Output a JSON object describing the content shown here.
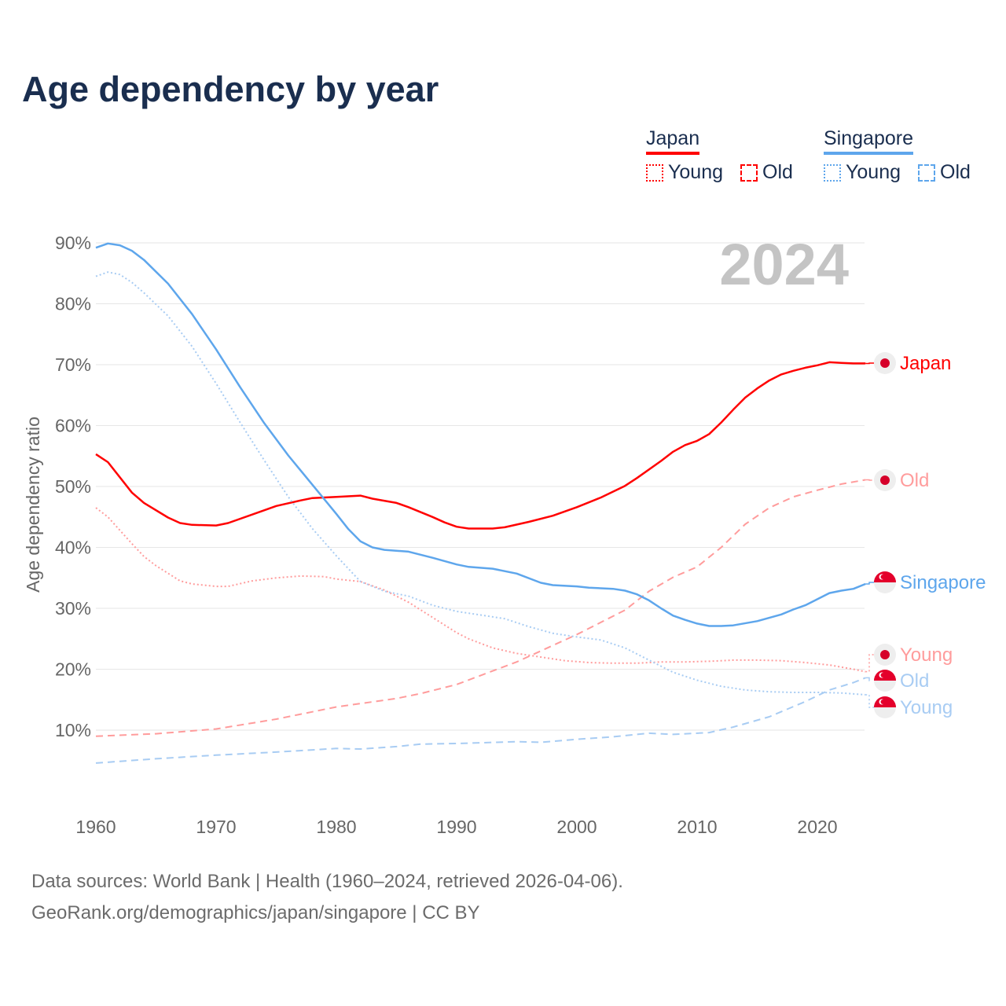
{
  "title": "Age dependency by year",
  "year_watermark": "2024",
  "legend": {
    "groups": [
      {
        "name": "Japan",
        "color": "#ff0000",
        "items": [
          {
            "label": "Young",
            "style": "dotted"
          },
          {
            "label": "Old",
            "style": "dashed"
          }
        ]
      },
      {
        "name": "Singapore",
        "color": "#5ea6ec",
        "items": [
          {
            "label": "Young",
            "style": "dotted"
          },
          {
            "label": "Old",
            "style": "dashed"
          }
        ]
      }
    ]
  },
  "footer": {
    "line1": "Data sources: World Bank | Health (1960–2024, retrieved 2026-04-06).",
    "line2": "GeoRank.org/demographics/japan/singapore | CC BY"
  },
  "chart_data": {
    "type": "line",
    "title": "Age dependency by year",
    "xlabel": "",
    "ylabel": "Age dependency ratio",
    "xlim": [
      1960,
      2024
    ],
    "ylim": [
      0,
      90
    ],
    "x_ticks": [
      "1960",
      "1970",
      "1980",
      "1990",
      "2000",
      "2010",
      "2020"
    ],
    "y_ticks": [
      "10%",
      "20%",
      "30%",
      "40%",
      "50%",
      "60%",
      "70%",
      "80%",
      "90%"
    ],
    "grid": true,
    "series": [
      {
        "name": "Japan",
        "label": "Japan",
        "country": "Japan",
        "color": "#ff0000",
        "dash": "solid",
        "points": [
          [
            1960,
            55.3
          ],
          [
            1961,
            54
          ],
          [
            1963,
            49
          ],
          [
            1964,
            47.3
          ],
          [
            1966,
            44.9
          ],
          [
            1967,
            44
          ],
          [
            1968,
            43.7
          ],
          [
            1970,
            43.6
          ],
          [
            1971,
            44
          ],
          [
            1973,
            45.4
          ],
          [
            1975,
            46.8
          ],
          [
            1977,
            47.7
          ],
          [
            1978,
            48.1
          ],
          [
            1980,
            48.3
          ],
          [
            1982,
            48.5
          ],
          [
            1983,
            48
          ],
          [
            1985,
            47.3
          ],
          [
            1986,
            46.6
          ],
          [
            1988,
            45
          ],
          [
            1989,
            44.1
          ],
          [
            1990,
            43.4
          ],
          [
            1991,
            43.1
          ],
          [
            1993,
            43.1
          ],
          [
            1994,
            43.3
          ],
          [
            1996,
            44.2
          ],
          [
            1998,
            45.2
          ],
          [
            2000,
            46.6
          ],
          [
            2002,
            48.2
          ],
          [
            2004,
            50.1
          ],
          [
            2005,
            51.4
          ],
          [
            2007,
            54.2
          ],
          [
            2008,
            55.7
          ],
          [
            2009,
            56.8
          ],
          [
            2010,
            57.5
          ],
          [
            2011,
            58.6
          ],
          [
            2012,
            60.5
          ],
          [
            2013,
            62.6
          ],
          [
            2014,
            64.6
          ],
          [
            2015,
            66.1
          ],
          [
            2016,
            67.4
          ],
          [
            2017,
            68.4
          ],
          [
            2018,
            69
          ],
          [
            2019,
            69.5
          ],
          [
            2020,
            69.9
          ],
          [
            2021,
            70.4
          ],
          [
            2022,
            70.3
          ],
          [
            2023,
            70.2
          ],
          [
            2024,
            70.2
          ]
        ]
      },
      {
        "name": "Japan Old",
        "label": "Old",
        "country": "Japan",
        "color": "#ff9c9c",
        "dash": "dashed",
        "points": [
          [
            1960,
            9
          ],
          [
            1965,
            9.4
          ],
          [
            1970,
            10.2
          ],
          [
            1975,
            11.8
          ],
          [
            1980,
            13.8
          ],
          [
            1985,
            15.2
          ],
          [
            1987,
            16
          ],
          [
            1990,
            17.5
          ],
          [
            1995,
            21.2
          ],
          [
            2000,
            25.7
          ],
          [
            2004,
            29.7
          ],
          [
            2006,
            32.8
          ],
          [
            2008,
            35.1
          ],
          [
            2010,
            36.8
          ],
          [
            2012,
            40
          ],
          [
            2014,
            43.8
          ],
          [
            2016,
            46.5
          ],
          [
            2018,
            48.3
          ],
          [
            2020,
            49.4
          ],
          [
            2022,
            50.4
          ],
          [
            2024,
            51.1
          ]
        ]
      },
      {
        "name": "Singapore",
        "label": "Singapore",
        "country": "Singapore",
        "color": "#5ea6ec",
        "dash": "solid",
        "points": [
          [
            1960,
            89.2
          ],
          [
            1961,
            89.9
          ],
          [
            1962,
            89.6
          ],
          [
            1963,
            88.7
          ],
          [
            1964,
            87.2
          ],
          [
            1966,
            83.3
          ],
          [
            1968,
            78.3
          ],
          [
            1970,
            72.5
          ],
          [
            1972,
            66.3
          ],
          [
            1974,
            60.4
          ],
          [
            1976,
            55.1
          ],
          [
            1978,
            50.3
          ],
          [
            1980,
            45.5
          ],
          [
            1981,
            43
          ],
          [
            1982,
            41
          ],
          [
            1983,
            40
          ],
          [
            1984,
            39.6
          ],
          [
            1986,
            39.3
          ],
          [
            1988,
            38.3
          ],
          [
            1990,
            37.2
          ],
          [
            1991,
            36.8
          ],
          [
            1993,
            36.5
          ],
          [
            1995,
            35.7
          ],
          [
            1997,
            34.2
          ],
          [
            1998,
            33.8
          ],
          [
            2000,
            33.6
          ],
          [
            2001,
            33.4
          ],
          [
            2003,
            33.2
          ],
          [
            2004,
            32.9
          ],
          [
            2005,
            32.3
          ],
          [
            2006,
            31.3
          ],
          [
            2007,
            30
          ],
          [
            2008,
            28.8
          ],
          [
            2009,
            28.1
          ],
          [
            2010,
            27.5
          ],
          [
            2011,
            27.1
          ],
          [
            2012,
            27.1
          ],
          [
            2013,
            27.2
          ],
          [
            2015,
            27.9
          ],
          [
            2017,
            29
          ],
          [
            2018,
            29.8
          ],
          [
            2019,
            30.5
          ],
          [
            2020,
            31.5
          ],
          [
            2021,
            32.5
          ],
          [
            2022,
            32.9
          ],
          [
            2023,
            33.2
          ],
          [
            2024,
            34
          ]
        ]
      },
      {
        "name": "Japan Young",
        "label": "Young",
        "country": "Japan",
        "color": "#ff9c9c",
        "dash": "dotted",
        "points": [
          [
            1960,
            46.5
          ],
          [
            1961,
            45
          ],
          [
            1963,
            40.6
          ],
          [
            1964,
            38.5
          ],
          [
            1965,
            37
          ],
          [
            1967,
            34.5
          ],
          [
            1968,
            34
          ],
          [
            1970,
            33.6
          ],
          [
            1971,
            33.6
          ],
          [
            1973,
            34.5
          ],
          [
            1975,
            35
          ],
          [
            1977,
            35.3
          ],
          [
            1979,
            35.2
          ],
          [
            1980,
            34.8
          ],
          [
            1982,
            34.4
          ],
          [
            1984,
            33
          ],
          [
            1986,
            31
          ],
          [
            1988,
            28.5
          ],
          [
            1990,
            26
          ],
          [
            1991,
            25
          ],
          [
            1993,
            23.5
          ],
          [
            1995,
            22.6
          ],
          [
            1997,
            22
          ],
          [
            1999,
            21.4
          ],
          [
            2001,
            21.1
          ],
          [
            2003,
            21
          ],
          [
            2005,
            21
          ],
          [
            2007,
            21.2
          ],
          [
            2009,
            21.2
          ],
          [
            2011,
            21.3
          ],
          [
            2013,
            21.5
          ],
          [
            2015,
            21.5
          ],
          [
            2017,
            21.4
          ],
          [
            2019,
            21.1
          ],
          [
            2021,
            20.7
          ],
          [
            2023,
            20
          ],
          [
            2024,
            19.6
          ]
        ]
      },
      {
        "name": "Singapore Old",
        "label": "Old",
        "country": "Singapore",
        "color": "#a8ccf3",
        "dash": "dashed",
        "points": [
          [
            1960,
            4.6
          ],
          [
            1965,
            5.3
          ],
          [
            1970,
            5.9
          ],
          [
            1975,
            6.4
          ],
          [
            1980,
            7
          ],
          [
            1982,
            6.9
          ],
          [
            1985,
            7.3
          ],
          [
            1987,
            7.7
          ],
          [
            1990,
            7.8
          ],
          [
            1995,
            8.1
          ],
          [
            1997,
            8
          ],
          [
            2000,
            8.5
          ],
          [
            2003,
            8.9
          ],
          [
            2006,
            9.5
          ],
          [
            2008,
            9.3
          ],
          [
            2011,
            9.6
          ],
          [
            2013,
            10.5
          ],
          [
            2016,
            12.2
          ],
          [
            2019,
            14.7
          ],
          [
            2021,
            16.6
          ],
          [
            2023,
            17.8
          ],
          [
            2024,
            18.6
          ]
        ]
      },
      {
        "name": "Singapore Young",
        "label": "Young",
        "country": "Singapore",
        "color": "#a8ccf3",
        "dash": "dotted",
        "points": [
          [
            1960,
            84.5
          ],
          [
            1961,
            85.2
          ],
          [
            1962,
            84.8
          ],
          [
            1963,
            83.5
          ],
          [
            1964,
            81.8
          ],
          [
            1966,
            78
          ],
          [
            1968,
            73
          ],
          [
            1970,
            66.9
          ],
          [
            1972,
            60.5
          ],
          [
            1974,
            54.3
          ],
          [
            1976,
            48.3
          ],
          [
            1978,
            43.1
          ],
          [
            1980,
            38.6
          ],
          [
            1982,
            34.4
          ],
          [
            1984,
            32.8
          ],
          [
            1986,
            32
          ],
          [
            1988,
            30.5
          ],
          [
            1990,
            29.5
          ],
          [
            1992,
            28.9
          ],
          [
            1994,
            28.3
          ],
          [
            1996,
            27
          ],
          [
            1998,
            25.9
          ],
          [
            2000,
            25.3
          ],
          [
            2002,
            24.8
          ],
          [
            2004,
            23.5
          ],
          [
            2006,
            21.5
          ],
          [
            2008,
            19.5
          ],
          [
            2010,
            18.2
          ],
          [
            2012,
            17.2
          ],
          [
            2014,
            16.6
          ],
          [
            2016,
            16.3
          ],
          [
            2018,
            16.2
          ],
          [
            2020,
            16.2
          ],
          [
            2022,
            16.1
          ],
          [
            2024,
            15.8
          ]
        ]
      }
    ]
  }
}
